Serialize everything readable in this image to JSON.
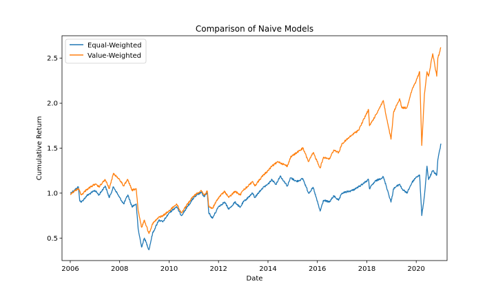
{
  "chart_data": {
    "type": "line",
    "title": "Comparison of Naive Models",
    "xlabel": "Date",
    "ylabel": "Cumulative Return",
    "xlim": [
      "2005-09-01",
      "2021-04-01"
    ],
    "ylim": [
      0.25,
      2.75
    ],
    "x_ticks": [
      "2006-01-01",
      "2008-01-01",
      "2010-01-01",
      "2012-01-01",
      "2014-01-01",
      "2016-01-01",
      "2018-01-01",
      "2020-01-01"
    ],
    "x_tick_labels": [
      "2006",
      "2008",
      "2010",
      "2012",
      "2014",
      "2016",
      "2018",
      "2020"
    ],
    "y_ticks": [
      0.5,
      1.0,
      1.5,
      2.0,
      2.5
    ],
    "y_tick_labels": [
      "0.5",
      "1.0",
      "1.5",
      "2.0",
      "2.5"
    ],
    "grid": false,
    "legend": "top-left",
    "series": [
      {
        "name": "Equal-Weighted",
        "color": "#1f77b4",
        "points": [
          [
            "2006-01-03",
            1.0
          ],
          [
            "2006-03-01",
            1.03
          ],
          [
            "2006-05-01",
            1.07
          ],
          [
            "2006-05-20",
            0.92
          ],
          [
            "2006-06-15",
            0.9
          ],
          [
            "2006-09-01",
            0.97
          ],
          [
            "2007-01-01",
            1.03
          ],
          [
            "2007-03-01",
            0.98
          ],
          [
            "2007-06-01",
            1.08
          ],
          [
            "2007-08-01",
            0.95
          ],
          [
            "2007-10-01",
            1.07
          ],
          [
            "2008-01-01",
            0.95
          ],
          [
            "2008-03-01",
            0.88
          ],
          [
            "2008-05-01",
            0.98
          ],
          [
            "2008-07-01",
            0.85
          ],
          [
            "2008-09-01",
            0.88
          ],
          [
            "2008-10-01",
            0.6
          ],
          [
            "2008-11-20",
            0.4
          ],
          [
            "2009-01-01",
            0.5
          ],
          [
            "2009-03-09",
            0.37
          ],
          [
            "2009-05-01",
            0.55
          ],
          [
            "2009-08-01",
            0.7
          ],
          [
            "2009-10-01",
            0.68
          ],
          [
            "2010-01-01",
            0.78
          ],
          [
            "2010-04-20",
            0.85
          ],
          [
            "2010-07-01",
            0.75
          ],
          [
            "2010-10-01",
            0.85
          ],
          [
            "2011-01-01",
            0.95
          ],
          [
            "2011-04-20",
            1.01
          ],
          [
            "2011-06-01",
            0.96
          ],
          [
            "2011-07-20",
            1.0
          ],
          [
            "2011-08-10",
            0.78
          ],
          [
            "2011-10-03",
            0.72
          ],
          [
            "2012-01-01",
            0.85
          ],
          [
            "2012-04-01",
            0.9
          ],
          [
            "2012-06-01",
            0.82
          ],
          [
            "2012-09-01",
            0.9
          ],
          [
            "2012-11-15",
            0.84
          ],
          [
            "2013-01-01",
            0.9
          ],
          [
            "2013-05-20",
            1.0
          ],
          [
            "2013-06-20",
            0.95
          ],
          [
            "2013-10-01",
            1.05
          ],
          [
            "2014-01-01",
            1.1
          ],
          [
            "2014-03-01",
            1.15
          ],
          [
            "2014-05-01",
            1.1
          ],
          [
            "2014-07-01",
            1.19
          ],
          [
            "2014-10-15",
            1.08
          ],
          [
            "2014-12-01",
            1.17
          ],
          [
            "2015-03-01",
            1.13
          ],
          [
            "2015-06-01",
            1.16
          ],
          [
            "2015-08-24",
            1.0
          ],
          [
            "2015-11-01",
            1.06
          ],
          [
            "2016-02-11",
            0.8
          ],
          [
            "2016-04-01",
            0.92
          ],
          [
            "2016-06-27",
            0.9
          ],
          [
            "2016-09-01",
            0.97
          ],
          [
            "2016-11-10",
            0.92
          ],
          [
            "2017-01-01",
            1.0
          ],
          [
            "2017-06-01",
            1.03
          ],
          [
            "2017-09-01",
            1.07
          ],
          [
            "2018-01-26",
            1.15
          ],
          [
            "2018-02-09",
            1.05
          ],
          [
            "2018-05-01",
            1.13
          ],
          [
            "2018-09-01",
            1.18
          ],
          [
            "2018-10-15",
            1.08
          ],
          [
            "2018-12-24",
            0.9
          ],
          [
            "2019-02-01",
            1.05
          ],
          [
            "2019-05-01",
            1.1
          ],
          [
            "2019-06-01",
            1.05
          ],
          [
            "2019-08-15",
            1.0
          ],
          [
            "2019-11-01",
            1.12
          ],
          [
            "2020-01-01",
            1.18
          ],
          [
            "2020-02-20",
            1.2
          ],
          [
            "2020-03-23",
            0.75
          ],
          [
            "2020-05-01",
            0.97
          ],
          [
            "2020-06-08",
            1.3
          ],
          [
            "2020-07-01",
            1.15
          ],
          [
            "2020-09-01",
            1.25
          ],
          [
            "2020-10-30",
            1.2
          ],
          [
            "2020-11-15",
            1.37
          ],
          [
            "2020-12-31",
            1.55
          ]
        ]
      },
      {
        "name": "Value-Weighted",
        "color": "#ff7f0e",
        "points": [
          [
            "2006-01-03",
            0.99
          ],
          [
            "2006-03-01",
            1.02
          ],
          [
            "2006-05-01",
            1.05
          ],
          [
            "2006-06-15",
            0.98
          ],
          [
            "2006-09-01",
            1.04
          ],
          [
            "2007-01-01",
            1.1
          ],
          [
            "2007-03-01",
            1.07
          ],
          [
            "2007-06-01",
            1.15
          ],
          [
            "2007-08-01",
            1.05
          ],
          [
            "2007-10-01",
            1.22
          ],
          [
            "2008-01-01",
            1.15
          ],
          [
            "2008-03-01",
            1.08
          ],
          [
            "2008-05-01",
            1.15
          ],
          [
            "2008-07-01",
            1.03
          ],
          [
            "2008-09-01",
            1.05
          ],
          [
            "2008-10-01",
            0.8
          ],
          [
            "2008-11-20",
            0.62
          ],
          [
            "2009-01-01",
            0.7
          ],
          [
            "2009-03-09",
            0.55
          ],
          [
            "2009-05-01",
            0.66
          ],
          [
            "2009-08-01",
            0.73
          ],
          [
            "2009-10-01",
            0.75
          ],
          [
            "2010-01-01",
            0.8
          ],
          [
            "2010-04-20",
            0.88
          ],
          [
            "2010-07-01",
            0.78
          ],
          [
            "2010-10-01",
            0.88
          ],
          [
            "2011-01-01",
            0.97
          ],
          [
            "2011-04-20",
            1.03
          ],
          [
            "2011-06-01",
            0.98
          ],
          [
            "2011-07-20",
            1.02
          ],
          [
            "2011-08-10",
            0.85
          ],
          [
            "2011-10-03",
            0.83
          ],
          [
            "2012-01-01",
            0.95
          ],
          [
            "2012-04-01",
            1.02
          ],
          [
            "2012-06-01",
            0.95
          ],
          [
            "2012-09-01",
            1.02
          ],
          [
            "2012-11-15",
            0.98
          ],
          [
            "2013-01-01",
            1.03
          ],
          [
            "2013-05-20",
            1.13
          ],
          [
            "2013-06-20",
            1.08
          ],
          [
            "2013-10-01",
            1.18
          ],
          [
            "2014-01-01",
            1.25
          ],
          [
            "2014-03-01",
            1.3
          ],
          [
            "2014-06-01",
            1.35
          ],
          [
            "2014-10-15",
            1.3
          ],
          [
            "2014-12-01",
            1.4
          ],
          [
            "2015-03-01",
            1.45
          ],
          [
            "2015-06-01",
            1.5
          ],
          [
            "2015-08-24",
            1.35
          ],
          [
            "2015-11-01",
            1.45
          ],
          [
            "2016-02-11",
            1.28
          ],
          [
            "2016-04-01",
            1.4
          ],
          [
            "2016-06-27",
            1.38
          ],
          [
            "2016-09-01",
            1.48
          ],
          [
            "2016-11-10",
            1.45
          ],
          [
            "2017-01-01",
            1.55
          ],
          [
            "2017-06-01",
            1.65
          ],
          [
            "2017-09-01",
            1.7
          ],
          [
            "2018-01-26",
            1.93
          ],
          [
            "2018-02-09",
            1.75
          ],
          [
            "2018-05-01",
            1.85
          ],
          [
            "2018-09-01",
            2.03
          ],
          [
            "2018-10-15",
            1.85
          ],
          [
            "2018-12-24",
            1.6
          ],
          [
            "2019-02-01",
            1.9
          ],
          [
            "2019-05-01",
            2.05
          ],
          [
            "2019-06-01",
            1.95
          ],
          [
            "2019-08-15",
            1.95
          ],
          [
            "2019-11-01",
            2.15
          ],
          [
            "2020-01-01",
            2.25
          ],
          [
            "2020-02-20",
            2.35
          ],
          [
            "2020-03-23",
            1.53
          ],
          [
            "2020-05-01",
            2.1
          ],
          [
            "2020-06-08",
            2.35
          ],
          [
            "2020-07-01",
            2.3
          ],
          [
            "2020-09-01",
            2.55
          ],
          [
            "2020-10-30",
            2.3
          ],
          [
            "2020-11-15",
            2.5
          ],
          [
            "2020-12-31",
            2.62
          ]
        ]
      }
    ]
  }
}
